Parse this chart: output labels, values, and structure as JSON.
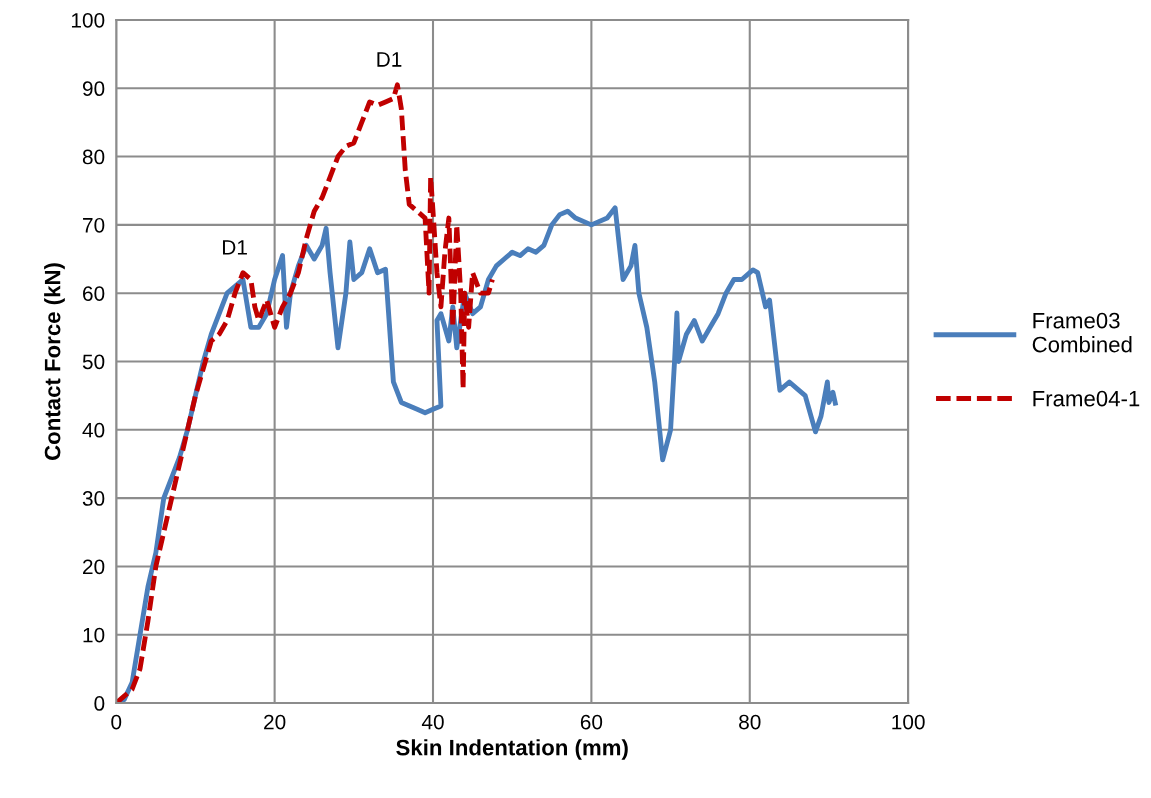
{
  "chart_data": {
    "type": "line",
    "xlabel": "Skin Indentation (mm)",
    "ylabel": "Contact Force (kN)",
    "xlim": [
      0,
      100
    ],
    "xticks": [
      0,
      20,
      40,
      60,
      80,
      100
    ],
    "ylim": [
      0,
      100
    ],
    "yticks": [
      0,
      10,
      20,
      30,
      40,
      50,
      60,
      70,
      80,
      90,
      100
    ],
    "grid": true,
    "legend": "right",
    "marker": "none",
    "annotations": [
      {
        "text": "D1",
        "x": 16,
        "y": 63
      },
      {
        "text": "D1",
        "x": 35.5,
        "y": 90.5
      }
    ],
    "series": [
      {
        "name": "Frame03\nCombined",
        "color": "#4a7ebb",
        "line_style": "solid",
        "x": [
          0,
          1,
          2,
          3,
          4,
          5,
          6,
          7,
          8,
          9,
          10,
          11,
          12,
          13,
          14,
          15,
          16,
          17,
          18,
          19,
          20,
          21,
          21.5,
          22,
          23,
          24,
          25,
          26,
          26.5,
          27,
          28,
          29,
          29.5,
          30,
          31,
          32,
          33,
          34,
          35,
          36,
          38,
          39,
          40,
          41,
          40.5,
          41,
          42,
          42.5,
          43,
          44,
          45,
          46,
          47,
          48,
          49,
          50,
          51,
          52,
          53,
          54,
          55,
          56,
          57,
          58,
          60,
          62,
          63,
          64,
          65,
          65.5,
          66,
          67,
          68,
          69,
          70,
          70.5,
          70.8,
          71,
          72,
          73,
          74,
          75,
          76,
          77,
          78,
          79,
          80.4,
          81,
          82,
          82.5,
          83.8,
          85,
          86,
          87,
          88.3,
          89,
          89.8,
          90,
          90.5,
          90.8
        ],
        "values": [
          0,
          0.5,
          3,
          10,
          17,
          22,
          30,
          33,
          36,
          40,
          45,
          50,
          54,
          57,
          60,
          61,
          62,
          55,
          55,
          57,
          62,
          65.5,
          55,
          60,
          64,
          67,
          65,
          67,
          69.5,
          63,
          52,
          60,
          67.5,
          62,
          63,
          66.5,
          63,
          63.5,
          47,
          44,
          43,
          42.5,
          43,
          43.5,
          56,
          57,
          53,
          58,
          52,
          60,
          57,
          58,
          62,
          64,
          65,
          66,
          65.5,
          66.5,
          66,
          67,
          70,
          71.5,
          72,
          71,
          70,
          71,
          72.5,
          62,
          64,
          67,
          60,
          55,
          47,
          35.6,
          40,
          50,
          57.1,
          50,
          54,
          56,
          53,
          55,
          57,
          60,
          62,
          62,
          63.4,
          63,
          58,
          59,
          45.8,
          47,
          46,
          45,
          39.7,
          42,
          47,
          44,
          45.5,
          43.9
        ]
      },
      {
        "name": "Frame04-1",
        "color": "#c00000",
        "line_style": "dashed",
        "x": [
          0,
          1,
          2,
          3,
          4,
          5,
          6,
          7,
          8,
          9,
          10,
          11,
          12,
          13,
          14,
          15,
          16,
          17,
          17.5,
          18,
          19,
          20,
          21,
          22,
          23,
          24,
          25,
          26,
          27,
          28,
          29,
          30,
          31,
          32,
          33,
          34,
          35,
          35.5,
          36,
          36.5,
          37,
          38,
          39,
          39.5,
          39.7,
          40,
          40.5,
          41,
          41.5,
          42,
          42.5,
          43,
          43.5,
          43.8,
          44,
          44.5,
          45,
          46,
          47,
          47.5
        ],
        "values": [
          0,
          1,
          2,
          5,
          12,
          20,
          25,
          30,
          35,
          40,
          45,
          49,
          53,
          54,
          56,
          60,
          63,
          62,
          58,
          56,
          59,
          55,
          58,
          60,
          63,
          68,
          72,
          74,
          77,
          80,
          81.5,
          82,
          85,
          88,
          87.5,
          88,
          88.5,
          90.5,
          87,
          78,
          73,
          72,
          71,
          60,
          77,
          72,
          63,
          58,
          66,
          71,
          55,
          70,
          60,
          46,
          60,
          55,
          63,
          60,
          60,
          62
        ]
      }
    ]
  }
}
